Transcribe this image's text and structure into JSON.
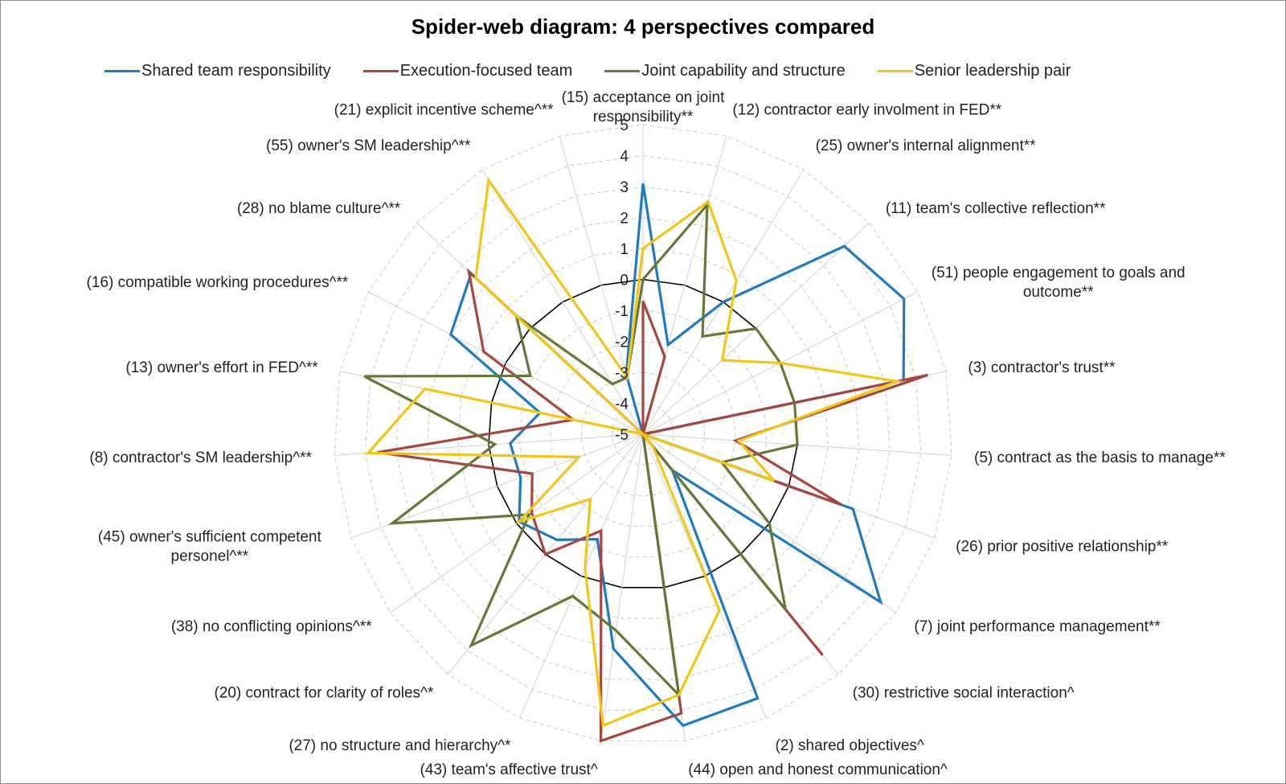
{
  "chart_data": {
    "type": "radar",
    "title": "Spider-web diagram: 4 perspectives compared",
    "rlim": [
      -5,
      5
    ],
    "rticks": [
      "-5",
      "-4",
      "-3",
      "-2",
      "-1",
      "0",
      "1",
      "2",
      "3",
      "4",
      "5"
    ],
    "categories": [
      "(15) acceptance on joint responsibility**",
      "(12) contractor early involment in FED**",
      "(25) owner's internal alignment**",
      "(11) team's collective reflection**",
      "(51) people engagement to goals and outcome**",
      "(3) contractor's trust**",
      "(5) contract as the basis to manage**",
      "(26) prior positive relationship**",
      "(7) joint performance management**",
      "(30) restrictive social interaction^",
      "(2) shared objectives^",
      "(44) open and honest communication^",
      "(43) team's affective trust^",
      "(27) no structure and hierarchy^*",
      "(20) contract for clarity of roles^*",
      "(38) no conflicting opinions^**",
      "(45) owner's sufficient competent personel^**",
      "(8) contractor's SM leadership^**",
      "(13) owner's effort in FED^**",
      "(16) compatible working procedures^**",
      "(28) no blame culture^**",
      "(55) owner's SM leadership^**",
      "(21) explicit incentive scheme^**"
    ],
    "series": [
      {
        "name": "Shared team responsibility",
        "color": "#1f7bbf",
        "values": [
          3.1,
          -2,
          0,
          3.9,
          4.5,
          3.6,
          -5,
          2.2,
          4.4,
          -3.5,
          4.3,
          4.5,
          2,
          -1.3,
          -0.6,
          -0.1,
          -0.8,
          -0.7,
          -1.6,
          2,
          2.6,
          -5,
          -3
        ]
      },
      {
        "name": "Execution-focused team",
        "color": "#a6463f",
        "values": [
          -0.7,
          -2.4,
          -5,
          -5,
          -5,
          4.4,
          -2,
          1.8,
          -5,
          4.2,
          -5,
          4.1,
          5,
          -1.6,
          0,
          -0.6,
          -1.2,
          3.6,
          -2.7,
          0.8,
          2.7,
          -5,
          -5
        ]
      },
      {
        "name": "Joint capability and structure",
        "color": "#66773a",
        "values": [
          0,
          2.7,
          -1.3,
          0,
          0,
          0,
          0,
          -2.3,
          0,
          2.3,
          -5,
          3.5,
          1.4,
          0.7,
          3.8,
          -0.5,
          3.6,
          -0.2,
          4.2,
          -0.9,
          0.6,
          -3.1,
          -3.1
        ]
      },
      {
        "name": "Senior leadership pair",
        "color": "#f2c516",
        "values": [
          1,
          2.8,
          0.8,
          -1.5,
          0,
          3.4,
          -1.9,
          -0.5,
          -5,
          -4.5,
          1.2,
          3.5,
          4.5,
          -0.3,
          -2.3,
          -0.1,
          -2.8,
          3.9,
          2.2,
          -5,
          2.4,
          4.6,
          -3.1
        ]
      }
    ],
    "legend_position": "top",
    "grid": true
  }
}
